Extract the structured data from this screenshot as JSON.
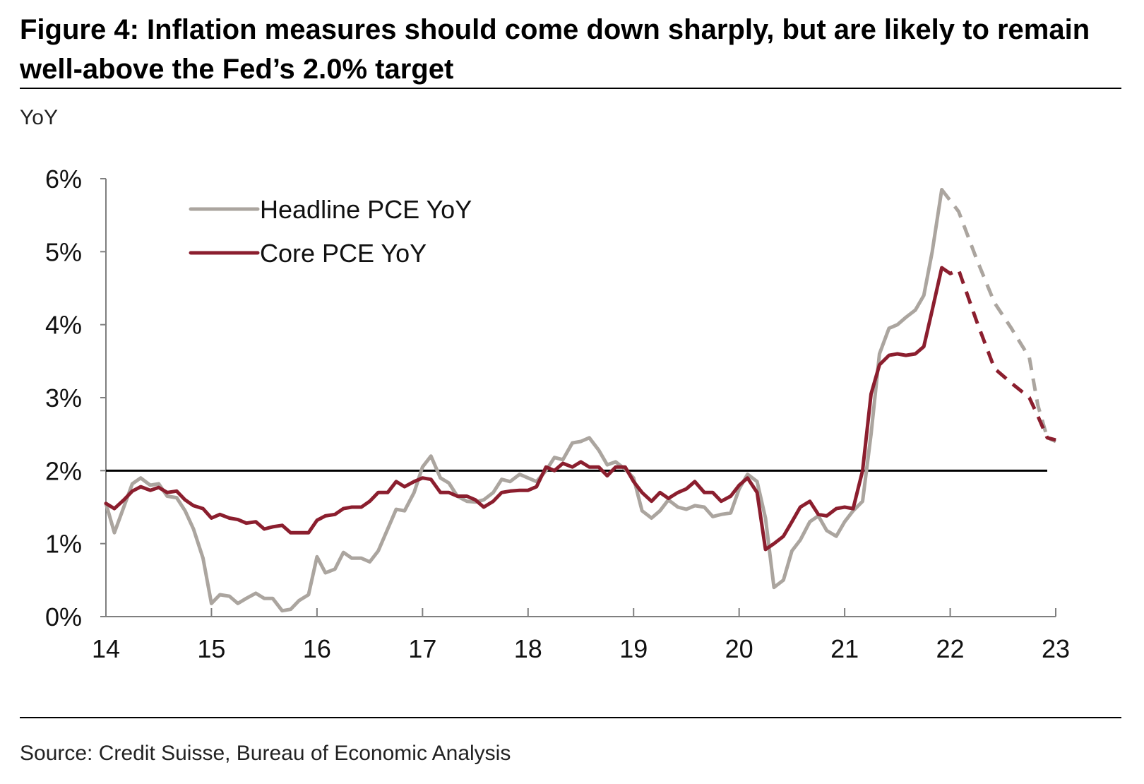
{
  "title": "Figure 4: Inflation measures should come down sharply, but are likely to remain well-above the Fed’s 2.0% target",
  "unit_label": "YoY",
  "source": "Source: Credit Suisse, Bureau of Economic Analysis",
  "colors": {
    "headline": "#aba59f",
    "core": "#8b1e2e",
    "target": "#000000",
    "axis": "#7f7f7f"
  },
  "chart_data": {
    "type": "line",
    "title": "Figure 4: Inflation measures should come down sharply, but are likely to remain well-above the Fed’s 2.0% target",
    "ylabel": "YoY",
    "xlabel": "",
    "xlim": [
      14,
      23
    ],
    "ylim": [
      0,
      6
    ],
    "x_ticks": [
      14,
      15,
      16,
      17,
      18,
      19,
      20,
      21,
      22,
      23
    ],
    "x_tick_labels": [
      "14",
      "15",
      "16",
      "17",
      "18",
      "19",
      "20",
      "21",
      "22",
      "23"
    ],
    "y_ticks": [
      0,
      1,
      2,
      3,
      4,
      5,
      6
    ],
    "y_tick_labels": [
      "0%",
      "1%",
      "2%",
      "3%",
      "4%",
      "5%",
      "6%"
    ],
    "target_line": 2.0,
    "legend_position": "top-left",
    "series": [
      {
        "name": "Headline PCE YoY",
        "color_key": "headline",
        "actual_points": [
          [
            14.0,
            1.55
          ],
          [
            14.08,
            1.15
          ],
          [
            14.25,
            1.82
          ],
          [
            14.33,
            1.9
          ],
          [
            14.42,
            1.8
          ],
          [
            14.5,
            1.82
          ],
          [
            14.58,
            1.65
          ],
          [
            14.67,
            1.63
          ],
          [
            14.75,
            1.45
          ],
          [
            14.83,
            1.2
          ],
          [
            14.92,
            0.8
          ],
          [
            15.0,
            0.18
          ],
          [
            15.08,
            0.3
          ],
          [
            15.17,
            0.28
          ],
          [
            15.25,
            0.18
          ],
          [
            15.33,
            0.25
          ],
          [
            15.42,
            0.32
          ],
          [
            15.5,
            0.25
          ],
          [
            15.58,
            0.25
          ],
          [
            15.67,
            0.08
          ],
          [
            15.75,
            0.1
          ],
          [
            15.83,
            0.22
          ],
          [
            15.92,
            0.3
          ],
          [
            16.0,
            0.82
          ],
          [
            16.08,
            0.6
          ],
          [
            16.17,
            0.65
          ],
          [
            16.25,
            0.88
          ],
          [
            16.33,
            0.8
          ],
          [
            16.42,
            0.8
          ],
          [
            16.5,
            0.75
          ],
          [
            16.58,
            0.9
          ],
          [
            16.67,
            1.2
          ],
          [
            16.75,
            1.47
          ],
          [
            16.83,
            1.45
          ],
          [
            16.92,
            1.7
          ],
          [
            17.0,
            2.05
          ],
          [
            17.08,
            2.2
          ],
          [
            17.17,
            1.9
          ],
          [
            17.25,
            1.83
          ],
          [
            17.33,
            1.65
          ],
          [
            17.42,
            1.58
          ],
          [
            17.5,
            1.57
          ],
          [
            17.58,
            1.6
          ],
          [
            17.67,
            1.7
          ],
          [
            17.75,
            1.88
          ],
          [
            17.83,
            1.85
          ],
          [
            17.92,
            1.95
          ],
          [
            18.0,
            1.9
          ],
          [
            18.08,
            1.85
          ],
          [
            18.17,
            2.0
          ],
          [
            18.25,
            2.18
          ],
          [
            18.33,
            2.15
          ],
          [
            18.42,
            2.38
          ],
          [
            18.5,
            2.4
          ],
          [
            18.58,
            2.45
          ],
          [
            18.67,
            2.28
          ],
          [
            18.75,
            2.08
          ],
          [
            18.83,
            2.12
          ],
          [
            18.92,
            2.02
          ],
          [
            19.0,
            1.9
          ],
          [
            19.08,
            1.45
          ],
          [
            19.17,
            1.35
          ],
          [
            19.25,
            1.45
          ],
          [
            19.33,
            1.6
          ],
          [
            19.42,
            1.5
          ],
          [
            19.5,
            1.47
          ],
          [
            19.58,
            1.52
          ],
          [
            19.67,
            1.5
          ],
          [
            19.75,
            1.37
          ],
          [
            19.83,
            1.4
          ],
          [
            19.92,
            1.42
          ],
          [
            20.0,
            1.75
          ],
          [
            20.08,
            1.95
          ],
          [
            20.17,
            1.85
          ],
          [
            20.25,
            1.35
          ],
          [
            20.33,
            0.4
          ],
          [
            20.42,
            0.5
          ],
          [
            20.5,
            0.9
          ],
          [
            20.58,
            1.05
          ],
          [
            20.67,
            1.3
          ],
          [
            20.75,
            1.38
          ],
          [
            20.83,
            1.18
          ],
          [
            20.92,
            1.1
          ],
          [
            21.0,
            1.3
          ],
          [
            21.08,
            1.45
          ],
          [
            21.17,
            1.58
          ],
          [
            21.25,
            2.5
          ],
          [
            21.33,
            3.6
          ],
          [
            21.42,
            3.95
          ],
          [
            21.5,
            4.0
          ],
          [
            21.58,
            4.1
          ],
          [
            21.67,
            4.2
          ],
          [
            21.75,
            4.4
          ],
          [
            21.83,
            5.0
          ],
          [
            21.92,
            5.85
          ]
        ],
        "forecast_points": [
          [
            21.92,
            5.85
          ],
          [
            22.0,
            5.7
          ],
          [
            22.08,
            5.55
          ],
          [
            22.25,
            4.9
          ],
          [
            22.42,
            4.3
          ],
          [
            22.58,
            3.95
          ],
          [
            22.75,
            3.55
          ],
          [
            22.83,
            2.9
          ],
          [
            22.92,
            2.45
          ],
          [
            23.0,
            2.4
          ]
        ]
      },
      {
        "name": "Core PCE YoY",
        "color_key": "core",
        "actual_points": [
          [
            14.0,
            1.55
          ],
          [
            14.08,
            1.48
          ],
          [
            14.17,
            1.6
          ],
          [
            14.25,
            1.72
          ],
          [
            14.33,
            1.78
          ],
          [
            14.42,
            1.73
          ],
          [
            14.5,
            1.77
          ],
          [
            14.58,
            1.7
          ],
          [
            14.67,
            1.72
          ],
          [
            14.75,
            1.6
          ],
          [
            14.83,
            1.52
          ],
          [
            14.92,
            1.48
          ],
          [
            15.0,
            1.35
          ],
          [
            15.08,
            1.4
          ],
          [
            15.17,
            1.35
          ],
          [
            15.25,
            1.33
          ],
          [
            15.33,
            1.28
          ],
          [
            15.42,
            1.3
          ],
          [
            15.5,
            1.2
          ],
          [
            15.58,
            1.23
          ],
          [
            15.67,
            1.25
          ],
          [
            15.75,
            1.15
          ],
          [
            15.83,
            1.15
          ],
          [
            15.92,
            1.15
          ],
          [
            16.0,
            1.32
          ],
          [
            16.08,
            1.38
          ],
          [
            16.17,
            1.4
          ],
          [
            16.25,
            1.48
          ],
          [
            16.33,
            1.5
          ],
          [
            16.42,
            1.5
          ],
          [
            16.5,
            1.58
          ],
          [
            16.58,
            1.7
          ],
          [
            16.67,
            1.7
          ],
          [
            16.75,
            1.85
          ],
          [
            16.83,
            1.78
          ],
          [
            16.92,
            1.85
          ],
          [
            17.0,
            1.9
          ],
          [
            17.08,
            1.88
          ],
          [
            17.17,
            1.7
          ],
          [
            17.25,
            1.7
          ],
          [
            17.33,
            1.65
          ],
          [
            17.42,
            1.65
          ],
          [
            17.5,
            1.6
          ],
          [
            17.58,
            1.5
          ],
          [
            17.67,
            1.58
          ],
          [
            17.75,
            1.7
          ],
          [
            17.83,
            1.72
          ],
          [
            17.92,
            1.73
          ],
          [
            18.0,
            1.73
          ],
          [
            18.08,
            1.78
          ],
          [
            18.17,
            2.05
          ],
          [
            18.25,
            2.0
          ],
          [
            18.33,
            2.1
          ],
          [
            18.42,
            2.05
          ],
          [
            18.5,
            2.12
          ],
          [
            18.58,
            2.05
          ],
          [
            18.67,
            2.05
          ],
          [
            18.75,
            1.93
          ],
          [
            18.83,
            2.05
          ],
          [
            18.92,
            2.05
          ],
          [
            19.0,
            1.85
          ],
          [
            19.08,
            1.7
          ],
          [
            19.17,
            1.58
          ],
          [
            19.25,
            1.7
          ],
          [
            19.33,
            1.62
          ],
          [
            19.42,
            1.7
          ],
          [
            19.5,
            1.75
          ],
          [
            19.58,
            1.85
          ],
          [
            19.67,
            1.7
          ],
          [
            19.75,
            1.7
          ],
          [
            19.83,
            1.58
          ],
          [
            19.92,
            1.65
          ],
          [
            20.0,
            1.8
          ],
          [
            20.08,
            1.9
          ],
          [
            20.17,
            1.7
          ],
          [
            20.25,
            0.92
          ],
          [
            20.33,
            1.0
          ],
          [
            20.42,
            1.1
          ],
          [
            20.5,
            1.3
          ],
          [
            20.58,
            1.5
          ],
          [
            20.67,
            1.58
          ],
          [
            20.75,
            1.4
          ],
          [
            20.83,
            1.38
          ],
          [
            20.92,
            1.48
          ],
          [
            21.0,
            1.5
          ],
          [
            21.08,
            1.48
          ],
          [
            21.17,
            2.0
          ],
          [
            21.25,
            3.05
          ],
          [
            21.33,
            3.45
          ],
          [
            21.42,
            3.58
          ],
          [
            21.5,
            3.6
          ],
          [
            21.58,
            3.58
          ],
          [
            21.67,
            3.6
          ],
          [
            21.75,
            3.7
          ],
          [
            21.83,
            4.2
          ],
          [
            21.92,
            4.78
          ]
        ],
        "forecast_points": [
          [
            21.92,
            4.78
          ],
          [
            22.0,
            4.7
          ],
          [
            22.08,
            4.75
          ],
          [
            22.25,
            4.05
          ],
          [
            22.42,
            3.4
          ],
          [
            22.58,
            3.2
          ],
          [
            22.75,
            3.0
          ],
          [
            22.83,
            2.75
          ],
          [
            22.92,
            2.45
          ],
          [
            23.0,
            2.42
          ]
        ]
      }
    ]
  }
}
